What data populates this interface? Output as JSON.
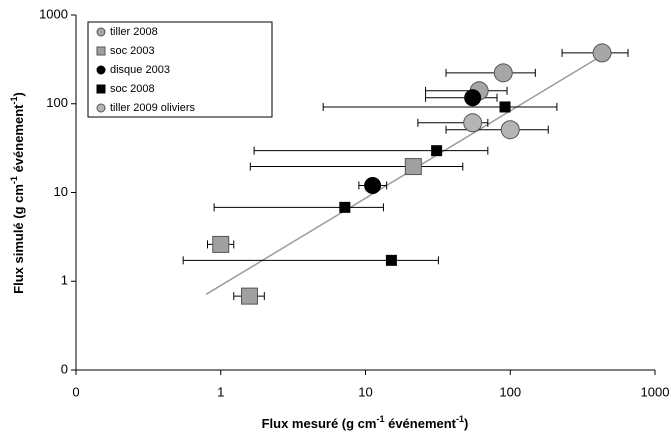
{
  "chart_data": {
    "type": "scatter",
    "xlabel": [
      "Flux mesuré (g cm",
      "-1",
      " événement",
      "-1",
      ")"
    ],
    "ylabel": [
      "Flux simulé (g cm",
      "-1",
      " événement",
      "-1",
      ")"
    ],
    "log_x": true,
    "log_y": true,
    "xlim": [
      0.1,
      1000
    ],
    "ylim": [
      0.1,
      1000
    ],
    "xticks": [
      {
        "value": 0.1,
        "label": "0"
      },
      1,
      10,
      100,
      1000
    ],
    "yticks": [
      {
        "value": 0.1,
        "label": "0"
      },
      1,
      10,
      100,
      1000
    ],
    "legend": "top-left",
    "series": [
      {
        "name": "tiller 2008",
        "color": "#a6a6a6",
        "marker": "circle",
        "x": [
          431,
          89.5,
          61
        ],
        "values": [
          374,
          223,
          140
        ],
        "x_low": [
          228,
          36,
          26
        ],
        "x_high": [
          651,
          149,
          95
        ]
      },
      {
        "name": "soc 2003",
        "color": "#a0a0a0",
        "marker": "square",
        "x": [
          21.4,
          1.0,
          1.58
        ],
        "values": [
          19.6,
          2.6,
          0.68
        ],
        "x_low": [
          1.6,
          0.81,
          1.23
        ],
        "x_high": [
          47,
          1.23,
          2.0
        ]
      },
      {
        "name": "disque 2003",
        "color": "#000000",
        "marker": "circle",
        "x": [
          55,
          11.2
        ],
        "values": [
          117,
          12
        ],
        "x_low": [
          26,
          9
        ],
        "x_high": [
          81,
          14
        ]
      },
      {
        "name": "soc 2008",
        "color": "#000000",
        "marker": "square",
        "x": [
          92,
          31,
          7.2,
          15.1
        ],
        "values": [
          92,
          29.6,
          6.8,
          1.72
        ],
        "x_low": [
          5.1,
          1.7,
          0.9,
          0.55
        ],
        "x_high": [
          210,
          70,
          13.3,
          31.9
        ]
      },
      {
        "name": "tiller 2009 oliviers",
        "color": "#b4b4b4",
        "marker": "circle",
        "x": [
          55,
          100
        ],
        "values": [
          61,
          51
        ],
        "x_low": [
          23,
          36
        ],
        "x_high": [
          70,
          183
        ]
      }
    ],
    "trendline": {
      "color": "#a09a9a",
      "x": [
        0.79,
        437
      ],
      "values": [
        0.71,
        355
      ]
    }
  }
}
